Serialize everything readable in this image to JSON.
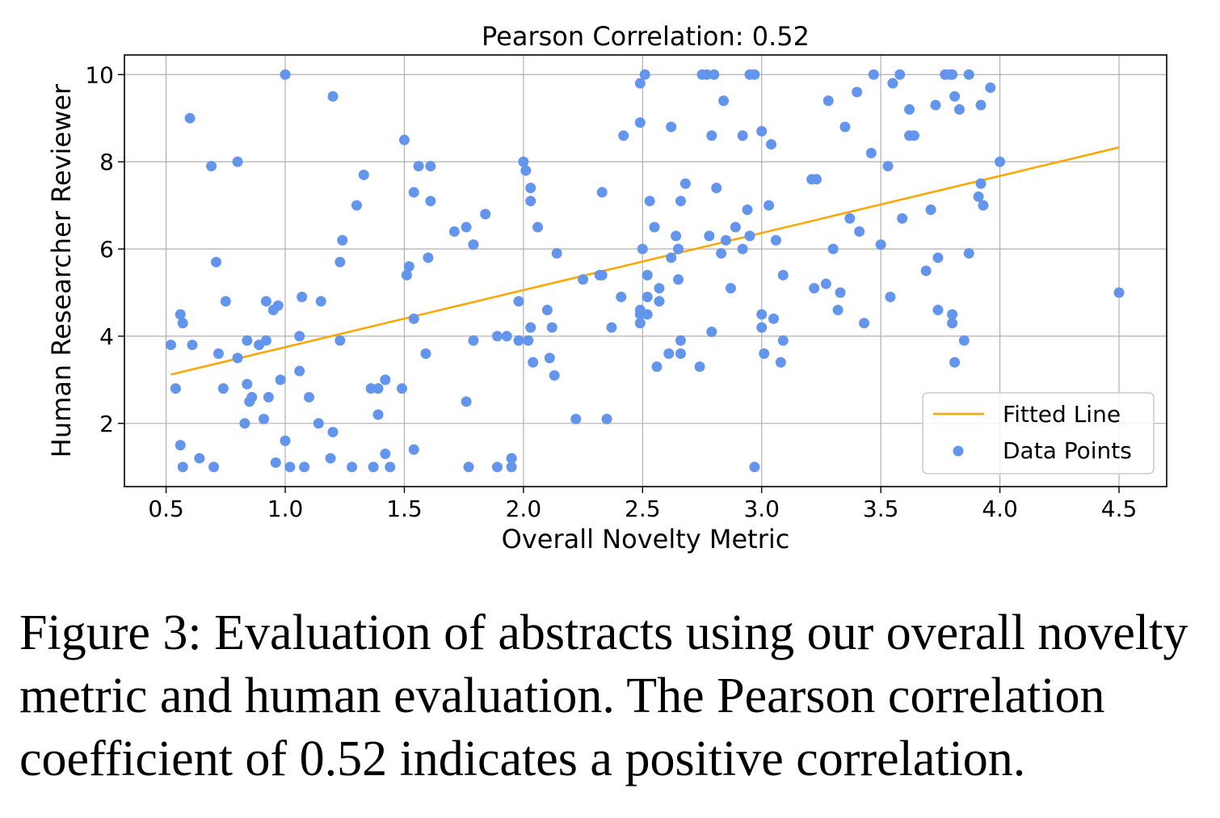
{
  "chart_data": {
    "type": "scatter",
    "title": "Pearson Correlation: 0.52",
    "xlabel": "Overall Novelty Metric",
    "ylabel": "Human Researcher Reviewer",
    "xlim": [
      0.325,
      4.7
    ],
    "ylim": [
      0.55,
      10.45
    ],
    "xticks": [
      0.5,
      1.0,
      1.5,
      2.0,
      2.5,
      3.0,
      3.5,
      4.0,
      4.5
    ],
    "xtick_labels": [
      "0.5",
      "1.0",
      "1.5",
      "2.0",
      "2.5",
      "3.0",
      "3.5",
      "4.0",
      "4.5"
    ],
    "yticks": [
      2,
      4,
      6,
      8,
      10
    ],
    "ytick_labels": [
      "2",
      "4",
      "6",
      "8",
      "10"
    ],
    "grid": true,
    "legend_position": "lower-right",
    "legend": [
      "Fitted Line",
      "Data Points"
    ],
    "colors": {
      "points": "#6495ed",
      "line": "#ffa500"
    },
    "fitted_line": {
      "x": [
        0.52,
        4.5
      ],
      "y": [
        3.12,
        8.33
      ]
    },
    "points": [
      [
        0.52,
        3.8
      ],
      [
        0.54,
        2.8
      ],
      [
        0.56,
        4.5
      ],
      [
        0.57,
        4.3
      ],
      [
        0.56,
        1.5
      ],
      [
        0.57,
        1.0
      ],
      [
        0.6,
        9.0
      ],
      [
        0.61,
        3.8
      ],
      [
        0.64,
        1.2
      ],
      [
        0.69,
        7.9
      ],
      [
        0.7,
        1.0
      ],
      [
        0.71,
        5.7
      ],
      [
        0.72,
        3.6
      ],
      [
        0.74,
        2.8
      ],
      [
        0.75,
        4.8
      ],
      [
        0.8,
        8.0
      ],
      [
        0.8,
        3.5
      ],
      [
        0.83,
        2.0
      ],
      [
        0.84,
        3.9
      ],
      [
        0.84,
        2.9
      ],
      [
        0.85,
        2.5
      ],
      [
        0.86,
        2.6
      ],
      [
        0.89,
        3.8
      ],
      [
        0.91,
        2.1
      ],
      [
        0.92,
        4.8
      ],
      [
        0.92,
        3.9
      ],
      [
        0.93,
        2.6
      ],
      [
        0.95,
        4.6
      ],
      [
        0.96,
        1.1
      ],
      [
        0.97,
        4.7
      ],
      [
        0.98,
        3.0
      ],
      [
        1.0,
        10.0
      ],
      [
        1.0,
        1.6
      ],
      [
        1.02,
        1.0
      ],
      [
        1.06,
        4.0
      ],
      [
        1.06,
        3.2
      ],
      [
        1.07,
        4.9
      ],
      [
        1.08,
        1.0
      ],
      [
        1.1,
        2.6
      ],
      [
        1.14,
        2.0
      ],
      [
        1.15,
        4.8
      ],
      [
        1.19,
        1.2
      ],
      [
        1.2,
        9.5
      ],
      [
        1.2,
        1.8
      ],
      [
        1.23,
        5.7
      ],
      [
        1.23,
        3.9
      ],
      [
        1.24,
        6.2
      ],
      [
        1.28,
        1.0
      ],
      [
        1.3,
        7.0
      ],
      [
        1.33,
        7.7
      ],
      [
        1.36,
        2.8
      ],
      [
        1.37,
        1.0
      ],
      [
        1.39,
        2.8
      ],
      [
        1.39,
        2.2
      ],
      [
        1.42,
        3.0
      ],
      [
        1.42,
        1.3
      ],
      [
        1.44,
        1.0
      ],
      [
        1.49,
        2.8
      ],
      [
        1.5,
        8.5
      ],
      [
        1.51,
        5.4
      ],
      [
        1.52,
        5.6
      ],
      [
        1.54,
        7.3
      ],
      [
        1.54,
        4.4
      ],
      [
        1.54,
        1.4
      ],
      [
        1.56,
        7.9
      ],
      [
        1.59,
        3.6
      ],
      [
        1.6,
        5.8
      ],
      [
        1.61,
        7.9
      ],
      [
        1.61,
        7.1
      ],
      [
        1.71,
        6.4
      ],
      [
        1.76,
        6.5
      ],
      [
        1.76,
        2.5
      ],
      [
        1.77,
        1.0
      ],
      [
        1.79,
        6.1
      ],
      [
        1.79,
        3.9
      ],
      [
        1.84,
        6.8
      ],
      [
        1.89,
        4.0
      ],
      [
        1.89,
        1.0
      ],
      [
        1.93,
        4.0
      ],
      [
        1.95,
        1.2
      ],
      [
        1.95,
        1.0
      ],
      [
        1.98,
        4.8
      ],
      [
        1.98,
        3.9
      ],
      [
        2.0,
        8.0
      ],
      [
        2.01,
        7.8
      ],
      [
        2.02,
        3.9
      ],
      [
        2.03,
        7.4
      ],
      [
        2.03,
        7.1
      ],
      [
        2.03,
        4.2
      ],
      [
        2.04,
        3.4
      ],
      [
        2.06,
        6.5
      ],
      [
        2.1,
        4.6
      ],
      [
        2.11,
        3.5
      ],
      [
        2.12,
        4.2
      ],
      [
        2.13,
        3.1
      ],
      [
        2.14,
        5.9
      ],
      [
        2.22,
        2.1
      ],
      [
        2.25,
        5.3
      ],
      [
        2.32,
        5.4
      ],
      [
        2.33,
        7.3
      ],
      [
        2.33,
        5.4
      ],
      [
        2.35,
        2.1
      ],
      [
        2.37,
        4.2
      ],
      [
        2.41,
        4.9
      ],
      [
        2.42,
        8.6
      ],
      [
        2.49,
        9.8
      ],
      [
        2.49,
        8.9
      ],
      [
        2.49,
        4.6
      ],
      [
        2.49,
        4.5
      ],
      [
        2.49,
        4.3
      ],
      [
        2.5,
        6.0
      ],
      [
        2.51,
        10.0
      ],
      [
        2.52,
        5.4
      ],
      [
        2.52,
        4.9
      ],
      [
        2.52,
        4.5
      ],
      [
        2.53,
        7.1
      ],
      [
        2.55,
        6.5
      ],
      [
        2.56,
        3.3
      ],
      [
        2.57,
        5.1
      ],
      [
        2.57,
        4.8
      ],
      [
        2.62,
        8.8
      ],
      [
        2.61,
        3.6
      ],
      [
        2.62,
        5.8
      ],
      [
        2.64,
        6.3
      ],
      [
        2.65,
        6.0
      ],
      [
        2.65,
        5.3
      ],
      [
        2.66,
        7.1
      ],
      [
        2.66,
        3.9
      ],
      [
        2.66,
        3.6
      ],
      [
        2.68,
        7.5
      ],
      [
        2.74,
        3.3
      ],
      [
        2.75,
        10.0
      ],
      [
        2.77,
        10.0
      ],
      [
        2.78,
        6.3
      ],
      [
        2.79,
        8.6
      ],
      [
        2.79,
        4.1
      ],
      [
        2.8,
        10.0
      ],
      [
        2.81,
        7.4
      ],
      [
        2.83,
        5.9
      ],
      [
        2.84,
        9.4
      ],
      [
        2.85,
        6.2
      ],
      [
        2.87,
        5.1
      ],
      [
        2.89,
        6.5
      ],
      [
        2.92,
        8.6
      ],
      [
        2.92,
        6.0
      ],
      [
        2.94,
        6.9
      ],
      [
        2.95,
        10.0
      ],
      [
        2.95,
        6.3
      ],
      [
        2.97,
        10.0
      ],
      [
        2.97,
        1.0
      ],
      [
        3.0,
        8.7
      ],
      [
        3.0,
        4.5
      ],
      [
        3.0,
        4.2
      ],
      [
        3.01,
        3.6
      ],
      [
        3.03,
        7.0
      ],
      [
        3.04,
        8.4
      ],
      [
        3.05,
        4.4
      ],
      [
        3.06,
        6.2
      ],
      [
        3.08,
        3.4
      ],
      [
        3.09,
        5.4
      ],
      [
        3.09,
        3.9
      ],
      [
        3.21,
        7.6
      ],
      [
        3.22,
        5.1
      ],
      [
        3.23,
        7.6
      ],
      [
        3.27,
        5.2
      ],
      [
        3.28,
        9.4
      ],
      [
        3.3,
        6.0
      ],
      [
        3.32,
        4.6
      ],
      [
        3.33,
        5.0
      ],
      [
        3.35,
        8.8
      ],
      [
        3.37,
        6.7
      ],
      [
        3.4,
        9.6
      ],
      [
        3.41,
        6.4
      ],
      [
        3.43,
        4.3
      ],
      [
        3.46,
        8.2
      ],
      [
        3.47,
        10.0
      ],
      [
        3.5,
        6.1
      ],
      [
        3.53,
        7.9
      ],
      [
        3.54,
        4.9
      ],
      [
        3.55,
        9.8
      ],
      [
        3.58,
        10.0
      ],
      [
        3.59,
        6.7
      ],
      [
        3.62,
        9.2
      ],
      [
        3.62,
        8.6
      ],
      [
        3.64,
        8.6
      ],
      [
        3.69,
        5.5
      ],
      [
        3.71,
        6.9
      ],
      [
        3.73,
        9.3
      ],
      [
        3.74,
        5.8
      ],
      [
        3.74,
        4.6
      ],
      [
        3.77,
        10.0
      ],
      [
        3.79,
        10.0
      ],
      [
        3.8,
        10.0
      ],
      [
        3.8,
        4.5
      ],
      [
        3.8,
        4.3
      ],
      [
        3.81,
        9.5
      ],
      [
        3.81,
        3.4
      ],
      [
        3.83,
        9.2
      ],
      [
        3.85,
        3.9
      ],
      [
        3.87,
        10.0
      ],
      [
        3.87,
        5.9
      ],
      [
        3.91,
        7.2
      ],
      [
        3.92,
        9.3
      ],
      [
        3.92,
        7.5
      ],
      [
        3.93,
        7.0
      ],
      [
        3.96,
        9.7
      ],
      [
        4.0,
        8.0
      ],
      [
        4.5,
        5.0
      ]
    ]
  },
  "caption": "Figure 3: Evaluation of abstracts using our overall novelty metric and human evaluation. The Pearson correlation coefficient of 0.52 indicates a positive correlation."
}
